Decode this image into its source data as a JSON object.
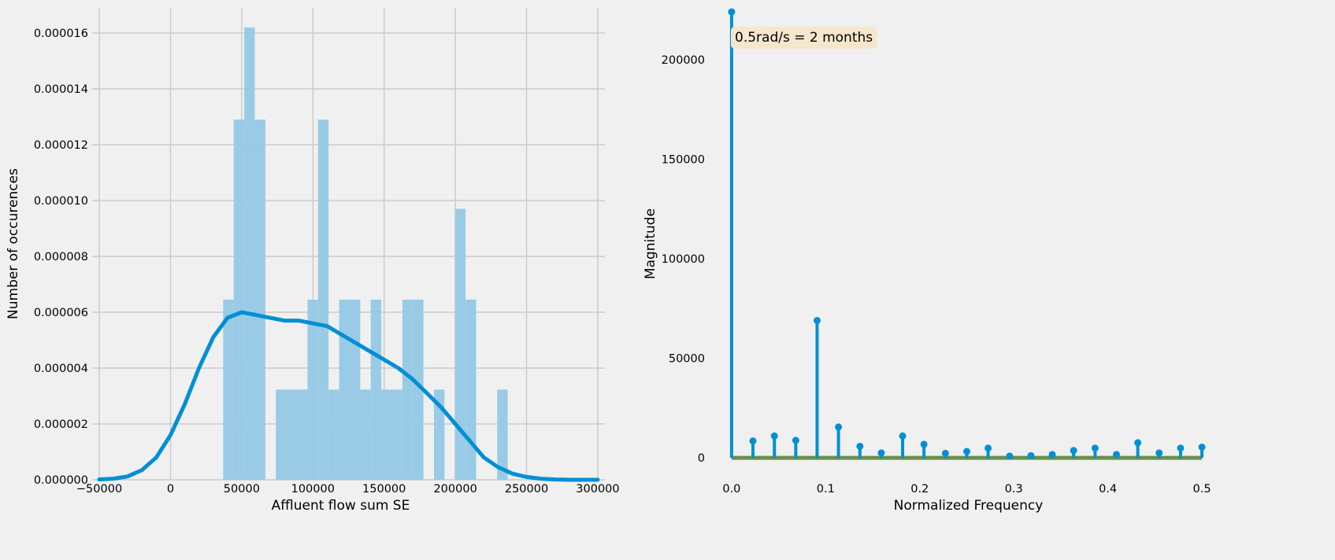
{
  "chart_data": [
    {
      "type": "bar",
      "subtype": "histogram-with-kde",
      "title": "",
      "xlabel": "Affluent flow sum SE",
      "ylabel": "Number of occurences",
      "xlim": [
        -55000,
        305000
      ],
      "ylim": [
        0,
        1.69e-05
      ],
      "grid": true,
      "x_ticks": [
        -50000,
        0,
        50000,
        100000,
        150000,
        200000,
        250000,
        300000
      ],
      "x_tick_labels": [
        "−50000",
        "0",
        "50000",
        "100000",
        "150000",
        "200000",
        "250000",
        "300000"
      ],
      "y_ticks": [
        0,
        2e-06,
        4e-06,
        6e-06,
        8e-06,
        1e-05,
        1.2e-05,
        1.4e-05,
        1.6e-05
      ],
      "y_tick_labels": [
        "0.000000",
        "0.000002",
        "0.000004",
        "0.000006",
        "0.000008",
        "0.000010",
        "0.000012",
        "0.000014",
        "0.000016"
      ],
      "bar_color": "#93c8e5",
      "line_color": "#008fd5",
      "bins": [
        {
          "x0": 37000,
          "x1": 44400,
          "value": 6.45e-06
        },
        {
          "x0": 44400,
          "x1": 51800,
          "value": 1.29e-05
        },
        {
          "x0": 51800,
          "x1": 59200,
          "value": 1.62e-05
        },
        {
          "x0": 59200,
          "x1": 66600,
          "value": 1.29e-05
        },
        {
          "x0": 66600,
          "x1": 74000,
          "value": 0
        },
        {
          "x0": 74000,
          "x1": 81400,
          "value": 3.23e-06
        },
        {
          "x0": 81400,
          "x1": 88800,
          "value": 3.23e-06
        },
        {
          "x0": 88800,
          "x1": 96200,
          "value": 3.23e-06
        },
        {
          "x0": 96200,
          "x1": 103600,
          "value": 6.45e-06
        },
        {
          "x0": 103600,
          "x1": 111000,
          "value": 1.29e-05
        },
        {
          "x0": 111000,
          "x1": 118400,
          "value": 3.23e-06
        },
        {
          "x0": 118400,
          "x1": 125800,
          "value": 6.45e-06
        },
        {
          "x0": 125800,
          "x1": 133200,
          "value": 6.45e-06
        },
        {
          "x0": 133200,
          "x1": 140600,
          "value": 3.23e-06
        },
        {
          "x0": 140600,
          "x1": 148000,
          "value": 6.45e-06
        },
        {
          "x0": 148000,
          "x1": 155400,
          "value": 3.23e-06
        },
        {
          "x0": 155400,
          "x1": 162800,
          "value": 3.23e-06
        },
        {
          "x0": 162800,
          "x1": 170200,
          "value": 6.45e-06
        },
        {
          "x0": 170200,
          "x1": 177600,
          "value": 6.45e-06
        },
        {
          "x0": 177600,
          "x1": 185000,
          "value": 0
        },
        {
          "x0": 185000,
          "x1": 192400,
          "value": 3.23e-06
        },
        {
          "x0": 192400,
          "x1": 199800,
          "value": 0
        },
        {
          "x0": 199800,
          "x1": 207200,
          "value": 9.7e-06
        },
        {
          "x0": 207200,
          "x1": 214600,
          "value": 6.45e-06
        },
        {
          "x0": 214600,
          "x1": 222000,
          "value": 0
        },
        {
          "x0": 222000,
          "x1": 229400,
          "value": 0
        },
        {
          "x0": 229400,
          "x1": 236800,
          "value": 3.23e-06
        }
      ],
      "kde": {
        "x": [
          -50000,
          -40000,
          -30000,
          -20000,
          -10000,
          0,
          10000,
          20000,
          30000,
          40000,
          50000,
          60000,
          70000,
          80000,
          90000,
          100000,
          110000,
          120000,
          130000,
          140000,
          150000,
          160000,
          170000,
          180000,
          190000,
          200000,
          210000,
          220000,
          230000,
          240000,
          250000,
          260000,
          270000,
          280000,
          290000,
          300000
        ],
        "y": [
          1e-08,
          4e-08,
          1.2e-07,
          3.5e-07,
          8e-07,
          1.6e-06,
          2.7e-06,
          4e-06,
          5.1e-06,
          5.8e-06,
          6e-06,
          5.9e-06,
          5.8e-06,
          5.7e-06,
          5.7e-06,
          5.6e-06,
          5.5e-06,
          5.2e-06,
          4.9e-06,
          4.6e-06,
          4.3e-06,
          4e-06,
          3.6e-06,
          3.1e-06,
          2.6e-06,
          2e-06,
          1.4e-06,
          8e-07,
          4.5e-07,
          2.2e-07,
          1e-07,
          4e-08,
          1e-08,
          0,
          0,
          0
        ]
      }
    },
    {
      "type": "stem",
      "title": "",
      "xlabel": "Normalized Frequency",
      "ylabel": "Magnitude",
      "xlim": [
        -0.02,
        0.51
      ],
      "ylim": [
        -11000,
        226000
      ],
      "grid": false,
      "x_ticks": [
        0,
        0.1,
        0.2,
        0.3,
        0.4,
        0.5
      ],
      "x_tick_labels": [
        "0.0",
        "0.1",
        "0.2",
        "0.3",
        "0.4",
        "0.5"
      ],
      "y_ticks": [
        0,
        50000,
        100000,
        150000,
        200000
      ],
      "y_tick_labels": [
        "0",
        "50000",
        "100000",
        "150000",
        "200000"
      ],
      "stem_color": "#008fd5",
      "baseline_color": "#6b8e4e",
      "annotation": "0.5rad/s = 2 months",
      "annotation_bg": "#f5e6cc",
      "x": [
        0,
        0.0227,
        0.0455,
        0.0682,
        0.0909,
        0.1136,
        0.1364,
        0.1591,
        0.1818,
        0.2045,
        0.2273,
        0.25,
        0.2727,
        0.2955,
        0.3182,
        0.3409,
        0.3636,
        0.3864,
        0.4091,
        0.4318,
        0.4545,
        0.4773,
        0.5
      ],
      "values": [
        224000,
        8500,
        11000,
        8800,
        69000,
        15500,
        5800,
        2500,
        11000,
        6800,
        2300,
        3200,
        4900,
        900,
        1100,
        1700,
        3700,
        4900,
        1700,
        7600,
        2500,
        4900,
        5400
      ]
    }
  ]
}
